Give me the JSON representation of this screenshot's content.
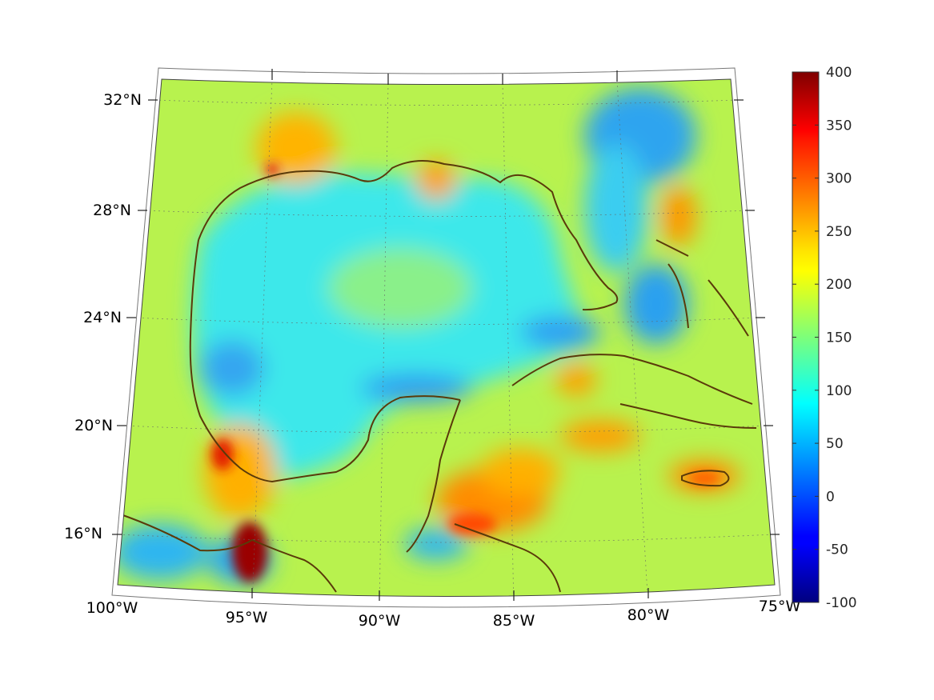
{
  "map": {
    "projection": "lambert-conic",
    "lon_range": [
      -100,
      -75
    ],
    "lat_range": [
      14,
      33
    ],
    "lat_ticks": [
      {
        "lat": 32,
        "label": "32°N"
      },
      {
        "lat": 28,
        "label": "28°N"
      },
      {
        "lat": 24,
        "label": "24°N"
      },
      {
        "lat": 20,
        "label": "20°N"
      },
      {
        "lat": 16,
        "label": "16°N"
      }
    ],
    "lon_ticks": [
      {
        "lon": -100,
        "label": "100°W"
      },
      {
        "lon": -95,
        "label": "95°W"
      },
      {
        "lon": -90,
        "label": "90°W"
      },
      {
        "lon": -85,
        "label": "85°W"
      },
      {
        "lon": -80,
        "label": "80°W"
      },
      {
        "lon": -75,
        "label": "75°W"
      }
    ],
    "grid": true,
    "coastline_color": "#5a3a0a",
    "colormap": "jet"
  },
  "colorbar": {
    "min": -100,
    "max": 400,
    "ticks": [
      {
        "value": 400,
        "label": "400"
      },
      {
        "value": 350,
        "label": "350"
      },
      {
        "value": 300,
        "label": "300"
      },
      {
        "value": 250,
        "label": "250"
      },
      {
        "value": 200,
        "label": "200"
      },
      {
        "value": 150,
        "label": "150"
      },
      {
        "value": 100,
        "label": "100"
      },
      {
        "value": 50,
        "label": "50"
      },
      {
        "value": 0,
        "label": "0"
      },
      {
        "value": -50,
        "label": "-50"
      },
      {
        "value": -100,
        "label": "-100"
      }
    ]
  }
}
